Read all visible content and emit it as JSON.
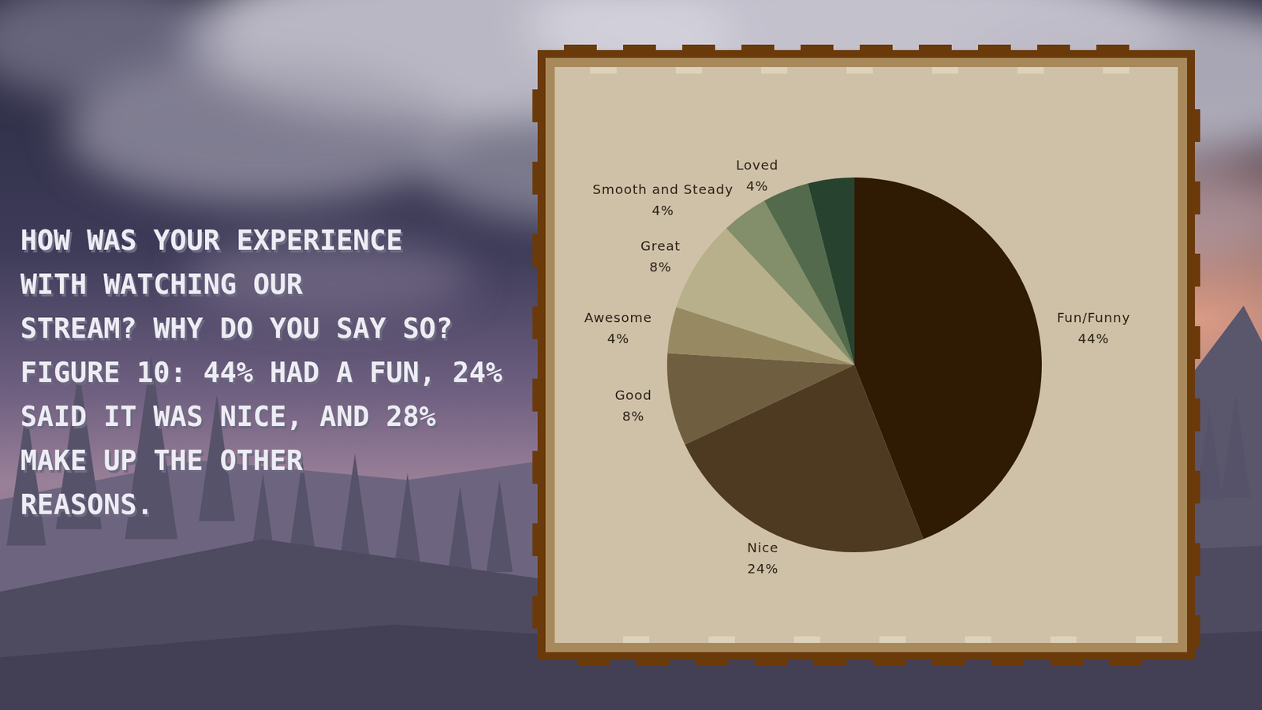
{
  "chart_data": {
    "type": "pie",
    "annotations": [
      "HOW WAS YOUR EXPERIENCE",
      "WITH WATCHING OUR",
      "STREAM? WHY DO YOU SAY SO?",
      "FIGURE 10: 44% HAD A FUN, 24%",
      "SAID IT WAS NICE, AND 28%",
      "MAKE UP THE OTHER",
      "REASONS."
    ],
    "categories": [
      "Fun/Funny",
      "Nice",
      "Good",
      "Awesome",
      "Great",
      "Smooth and Steady",
      "Loved",
      null
    ],
    "values": [
      44,
      24,
      8,
      4,
      8,
      4,
      4,
      4
    ],
    "value_labels": [
      "44%",
      "24%",
      "8%",
      "4%",
      "8%",
      "4%",
      "4%",
      null
    ],
    "colors": [
      "#2f1a04",
      "#4e3a20",
      "#6f5e3f",
      "#978a63",
      "#b8b08a",
      "#838e6a",
      "#536b4c",
      "#27432f"
    ],
    "data_labels": true
  }
}
